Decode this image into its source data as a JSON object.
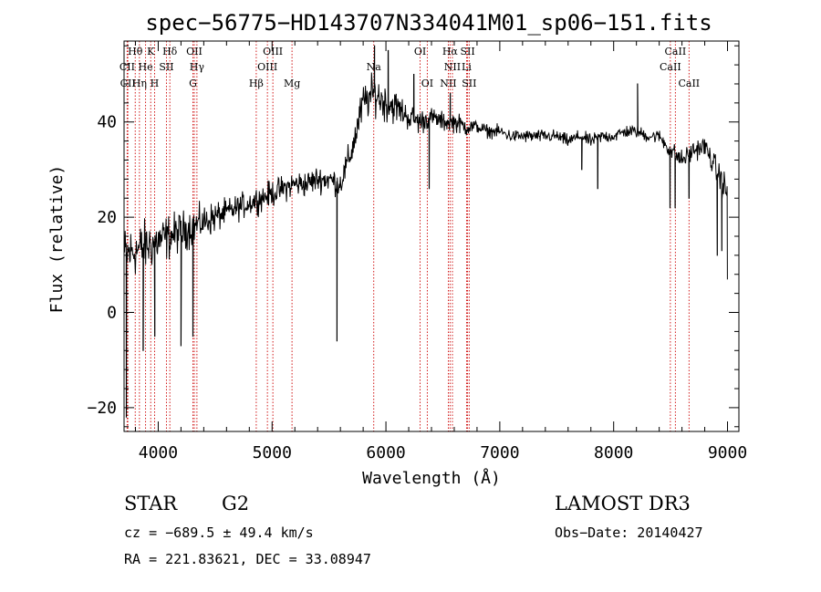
{
  "chart_data": {
    "type": "line",
    "title": "spec−56775−HD143707N334041M01_sp06−151.fits",
    "xlabel": "Wavelength (Å)",
    "ylabel": "Flux (relative)",
    "xlim": [
      3700,
      9100
    ],
    "ylim": [
      -25,
      57
    ],
    "xticks": [
      4000,
      5000,
      6000,
      7000,
      8000,
      9000
    ],
    "xtick_labels": [
      "4000",
      "5000",
      "6000",
      "7000",
      "8000",
      "9000"
    ],
    "yticks": [
      -20,
      0,
      20,
      40
    ],
    "ytick_labels": [
      "−20",
      "0",
      "20",
      "40"
    ],
    "line_color": "#000000",
    "marker_color": "#cc0000",
    "spectrum_anchors": {
      "x": [
        3700,
        3800,
        3900,
        4000,
        4100,
        4200,
        4300,
        4400,
        4500,
        4600,
        4700,
        4800,
        4900,
        5000,
        5100,
        5200,
        5300,
        5400,
        5500,
        5600,
        5700,
        5800,
        5900,
        6000,
        6100,
        6200,
        6300,
        6400,
        6500,
        6600,
        6700,
        6800,
        6900,
        7000,
        7100,
        7200,
        7300,
        7400,
        7500,
        7600,
        7700,
        7800,
        7900,
        8000,
        8100,
        8200,
        8300,
        8400,
        8500,
        8600,
        8700,
        8800,
        8900,
        9000
      ],
      "y": [
        12,
        13,
        14,
        15,
        16,
        17,
        18,
        19,
        20,
        21,
        22,
        23,
        24,
        25,
        26,
        27,
        27,
        28,
        28,
        27,
        34,
        44,
        46,
        44,
        43,
        41,
        40,
        41,
        40,
        40,
        39,
        39,
        38,
        38,
        37,
        37,
        37,
        37,
        37,
        36,
        37,
        36,
        37,
        37,
        38,
        38,
        37,
        37,
        34,
        32,
        34,
        35,
        30,
        25
      ],
      "noise": [
        9,
        8,
        8,
        7,
        7,
        6,
        6,
        5,
        5,
        4,
        4,
        4,
        4,
        4,
        4,
        4,
        4,
        4,
        4,
        4,
        5,
        6,
        6,
        6,
        5,
        4,
        4,
        3,
        3,
        3,
        3,
        2,
        2,
        2,
        2,
        2,
        2,
        2,
        2,
        2,
        2,
        2,
        2,
        2,
        2,
        2,
        2,
        2,
        3,
        3,
        3,
        3,
        4,
        5
      ]
    },
    "spectrum_dips": [
      {
        "x": 3720,
        "y": -22
      },
      {
        "x": 3868,
        "y": -8
      },
      {
        "x": 3970,
        "y": -5
      },
      {
        "x": 4200,
        "y": -7
      },
      {
        "x": 4305,
        "y": -5
      },
      {
        "x": 5570,
        "y": -6
      },
      {
        "x": 6380,
        "y": 26
      },
      {
        "x": 7720,
        "y": 30
      },
      {
        "x": 7860,
        "y": 26
      },
      {
        "x": 8495,
        "y": 22
      },
      {
        "x": 8540,
        "y": 22
      },
      {
        "x": 8662,
        "y": 24
      },
      {
        "x": 8910,
        "y": 12
      },
      {
        "x": 8950,
        "y": 13
      },
      {
        "x": 9000,
        "y": 7
      }
    ],
    "spectrum_peaks": [
      {
        "x": 5900,
        "y": 56
      },
      {
        "x": 6020,
        "y": 55
      },
      {
        "x": 6245,
        "y": 50
      },
      {
        "x": 6565,
        "y": 46
      },
      {
        "x": 8210,
        "y": 48
      }
    ],
    "spectral_lines": [
      {
        "name": "Hθ",
        "x": 3798,
        "row": 0
      },
      {
        "name": "K",
        "x": 3934,
        "row": 0
      },
      {
        "name": "Hδ",
        "x": 4102,
        "row": 0
      },
      {
        "name": "OII",
        "x": 4317,
        "row": 0
      },
      {
        "name": "OIII",
        "x": 5007,
        "row": 0
      },
      {
        "name": "OI",
        "x": 6300,
        "row": 0
      },
      {
        "name": "Hα",
        "x": 6563,
        "row": 0
      },
      {
        "name": "SII",
        "x": 6717,
        "row": 0
      },
      {
        "name": "CaII",
        "x": 8542,
        "row": 0
      },
      {
        "name": "CII",
        "x": 3727,
        "row": 1
      },
      {
        "name": "He",
        "x": 3889,
        "row": 1
      },
      {
        "name": "SII",
        "x": 4072,
        "row": 1
      },
      {
        "name": "Hγ",
        "x": 4340,
        "row": 1
      },
      {
        "name": "OIII",
        "x": 4959,
        "row": 1
      },
      {
        "name": "Na",
        "x": 5893,
        "row": 1
      },
      {
        "name": "NII",
        "x": 6584,
        "row": 1
      },
      {
        "name": "Li",
        "x": 6708,
        "row": 1
      },
      {
        "name": "CaII",
        "x": 8498,
        "row": 1
      },
      {
        "name": "CII",
        "x": 3733,
        "row": 2
      },
      {
        "name": "Hη",
        "x": 3835,
        "row": 2
      },
      {
        "name": "H",
        "x": 3968,
        "row": 2
      },
      {
        "name": "G",
        "x": 4305,
        "row": 2
      },
      {
        "name": "Hβ",
        "x": 4861,
        "row": 2
      },
      {
        "name": "Mg",
        "x": 5175,
        "row": 2
      },
      {
        "name": "OI",
        "x": 6363,
        "row": 2
      },
      {
        "name": "NII",
        "x": 6548,
        "row": 2
      },
      {
        "name": "SII",
        "x": 6731,
        "row": 2
      },
      {
        "name": "CaII",
        "x": 8662,
        "row": 2
      }
    ]
  },
  "info": {
    "object_class": "STAR",
    "subclass": "G2",
    "survey": "LAMOST DR3",
    "redshift": "cz = −689.5 ± 49.4 km/s",
    "obs_date": "Obs−Date: 20140427",
    "coords": "RA = 221.83621, DEC =  33.08947"
  }
}
